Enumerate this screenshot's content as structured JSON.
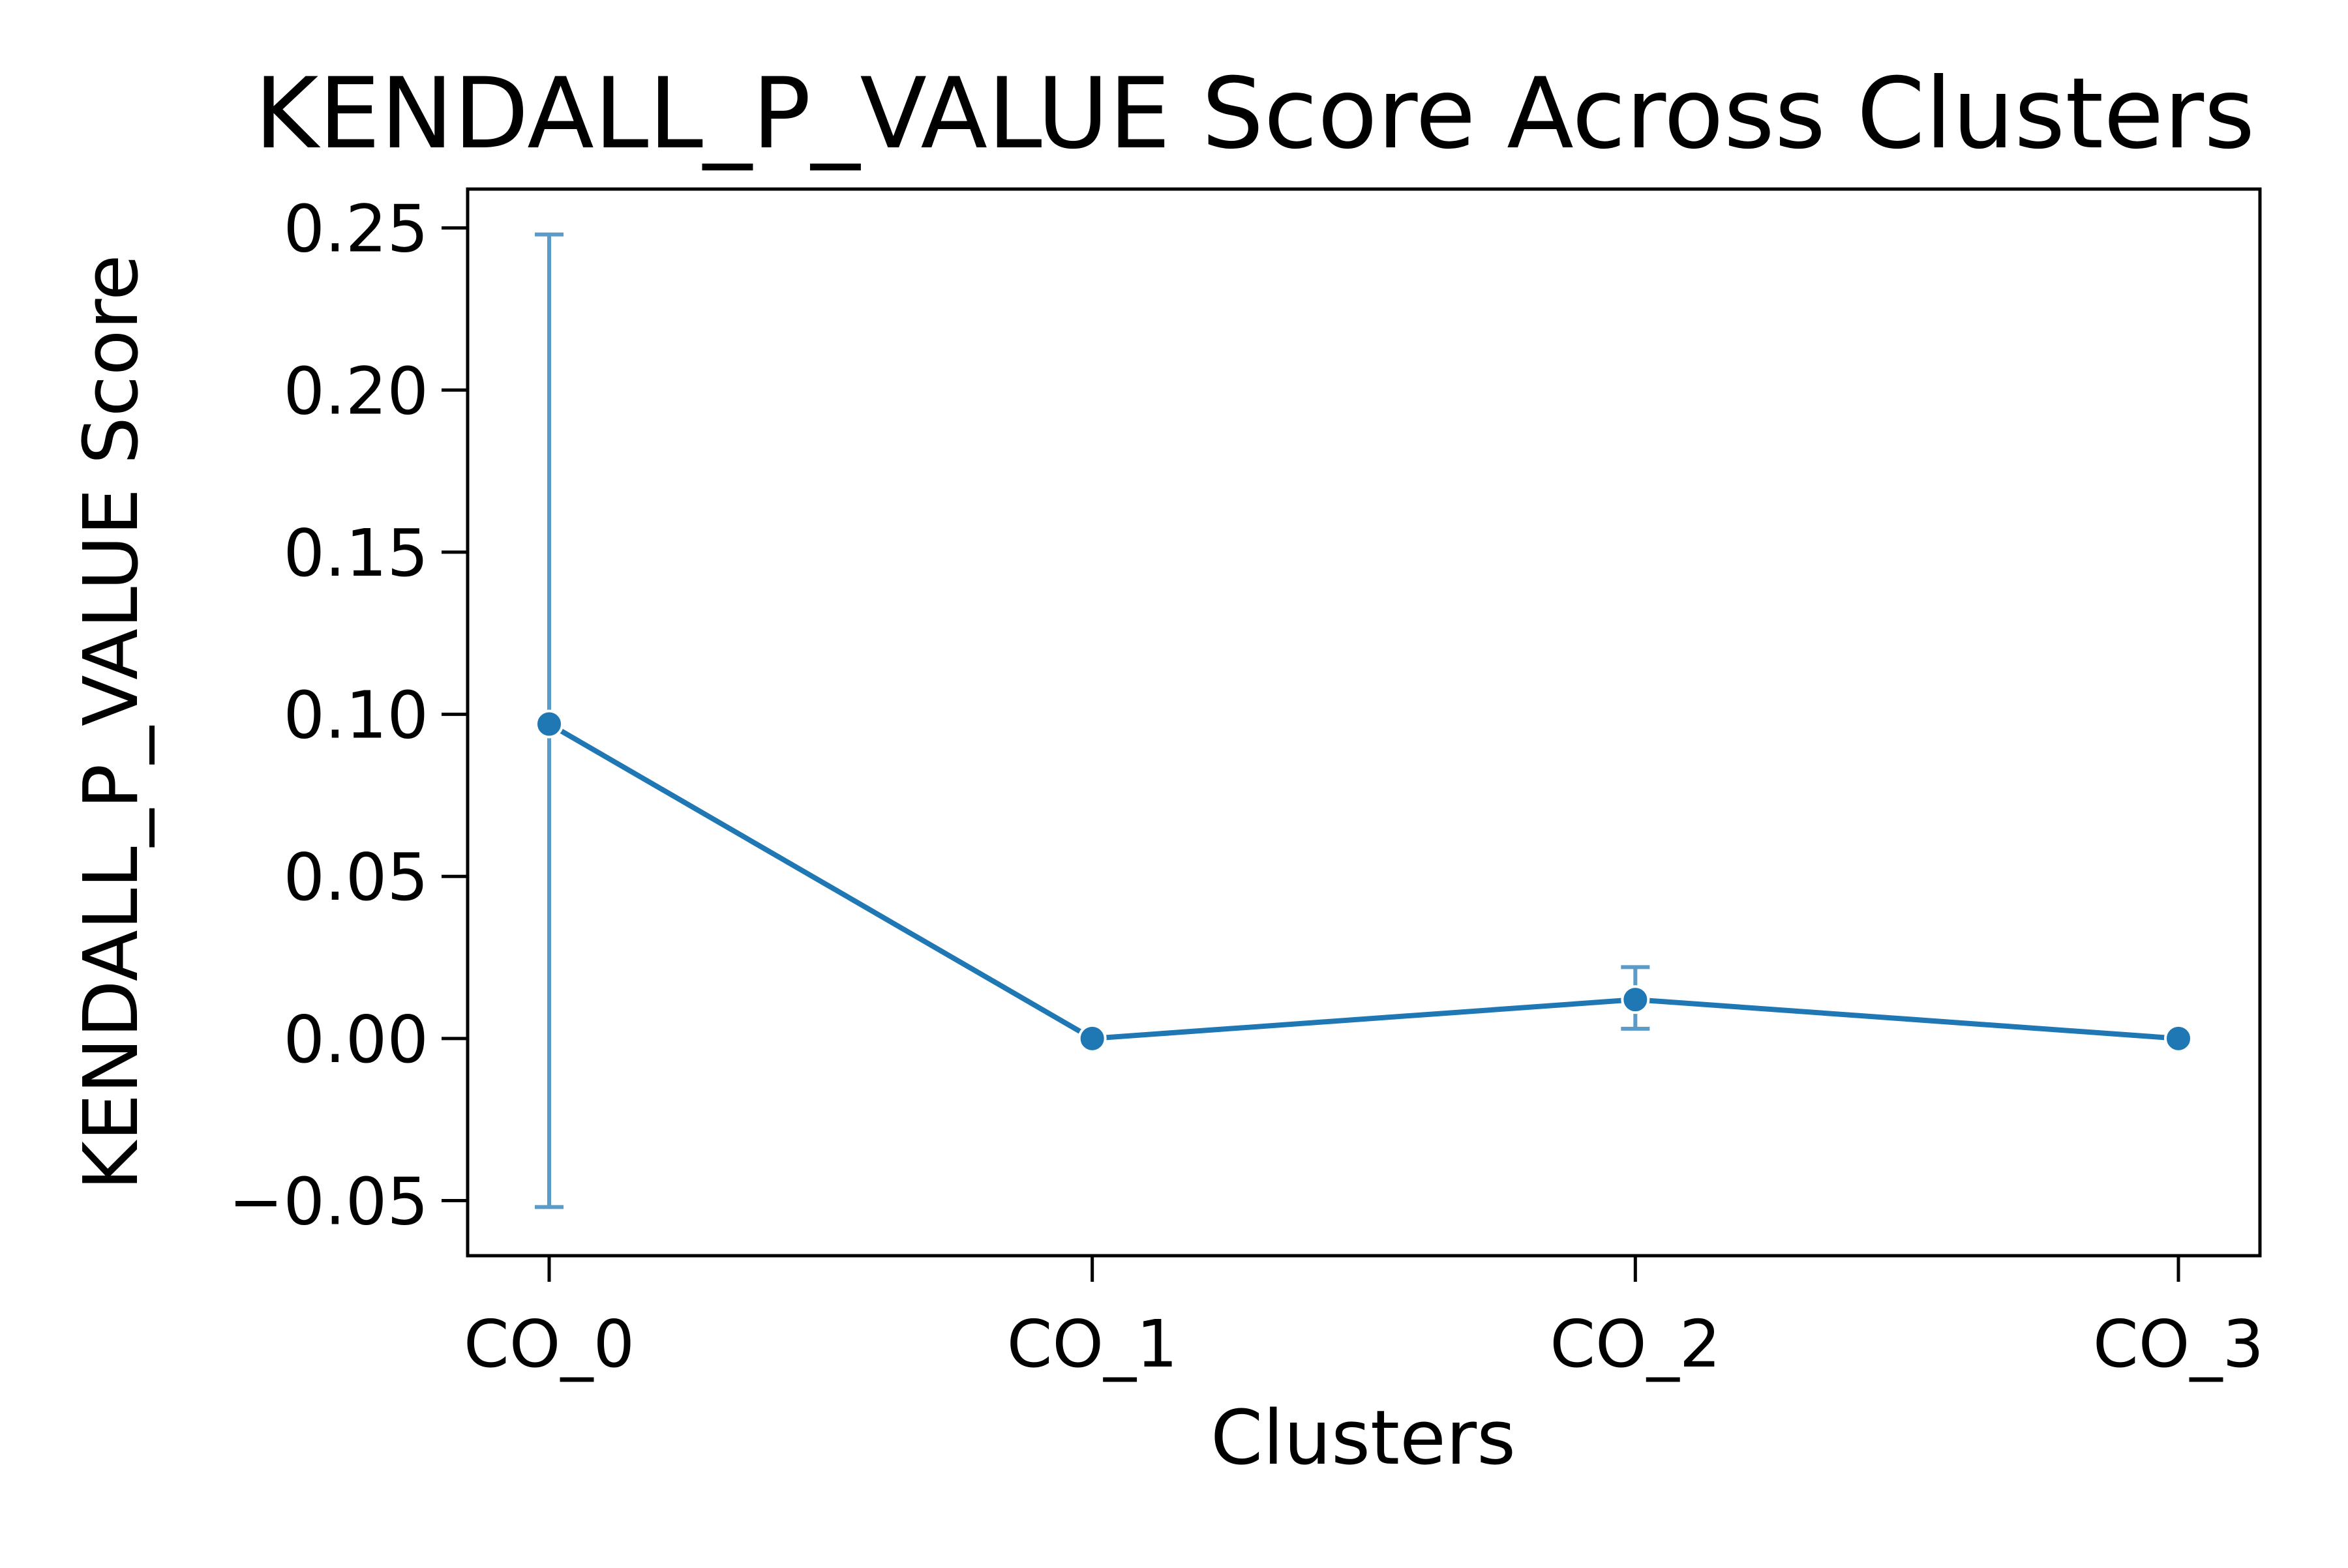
{
  "chart_data": {
    "type": "line",
    "title": "KENDALL_P_VALUE Score Across Clusters",
    "xlabel": "Clusters",
    "ylabel": "KENDALL_P_VALUE Score",
    "categories": [
      "CO_0",
      "CO_1",
      "CO_2",
      "CO_3"
    ],
    "series": [
      {
        "name": "",
        "values": [
          0.097,
          0.0,
          0.012,
          0.0
        ],
        "error_low": [
          -0.052,
          0.0,
          0.003,
          0.0
        ],
        "error_high": [
          0.248,
          0.0,
          0.022,
          0.0
        ]
      }
    ],
    "ylim": [
      -0.067,
      0.262
    ],
    "yticks": [
      -0.05,
      0.0,
      0.05,
      0.1,
      0.15,
      0.2,
      0.25
    ],
    "ytick_labels": [
      "−0.05",
      "0.00",
      "0.05",
      "0.10",
      "0.15",
      "0.20",
      "0.25"
    ],
    "grid": false,
    "legend": "none",
    "colors": {
      "line": "#1f77b4",
      "errorbar": "#5b9bc8",
      "axes": "#000000"
    }
  }
}
